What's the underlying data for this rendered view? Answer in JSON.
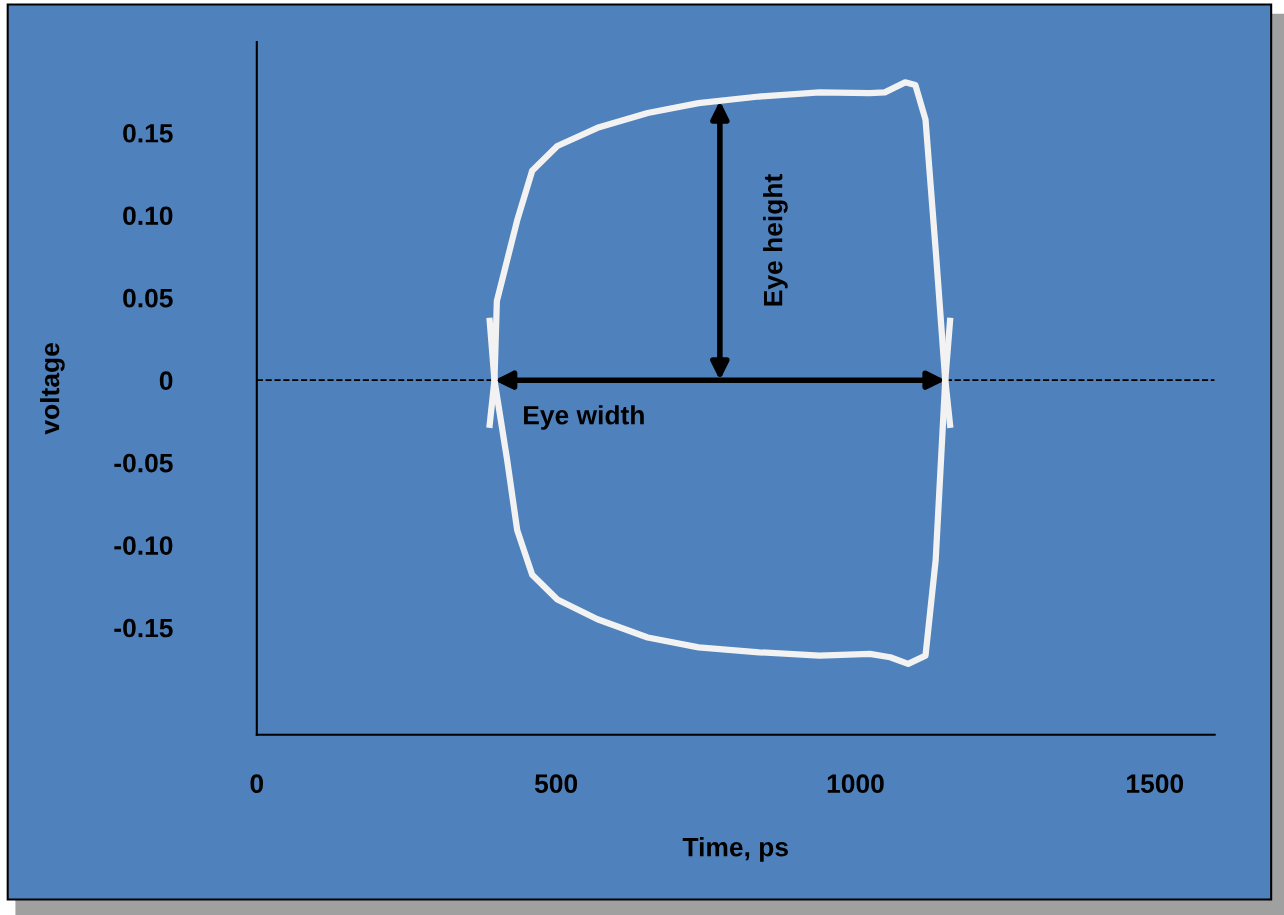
{
  "chart_data": {
    "type": "line",
    "xlabel": "Time, ps",
    "ylabel": "voltage",
    "xlim": [
      0,
      1600
    ],
    "ylim": [
      -0.215,
      0.205
    ],
    "xticks": [
      0,
      500,
      1000,
      1500
    ],
    "yticks": [
      {
        "value": 0.15,
        "label": "0.15"
      },
      {
        "value": 0.1,
        "label": "0.10"
      },
      {
        "value": 0.05,
        "label": "0.05"
      },
      {
        "value": 0,
        "label": "0"
      },
      {
        "value": -0.05,
        "label": "-0.05"
      },
      {
        "value": -0.1,
        "label": "-0.10"
      },
      {
        "value": -0.15,
        "label": "-0.15"
      }
    ],
    "grid": false,
    "marker": "none",
    "line_style": "solid",
    "series": [
      {
        "color": "#f2f2f2",
        "x": [
          389,
          397,
          401,
          435,
          460,
          502,
          569,
          653,
          738,
          839,
          940,
          1024,
          1049,
          1083,
          1100,
          1117,
          1134,
          1150,
          1158
        ],
        "values": [
          -0.027,
          0,
          0.048,
          0.097,
          0.127,
          0.142,
          0.153,
          0.162,
          0.168,
          0.172,
          0.1745,
          0.174,
          0.1745,
          0.1806,
          0.179,
          0.158,
          0.079,
          0,
          -0.027
        ]
      },
      {
        "color": "#f2f2f2",
        "x": [
          389,
          397,
          418,
          435,
          460,
          502,
          569,
          653,
          738,
          839,
          940,
          1024,
          1058,
          1088,
          1117,
          1134,
          1150,
          1158
        ],
        "values": [
          0.036,
          0,
          -0.048,
          -0.091,
          -0.118,
          -0.133,
          -0.145,
          -0.156,
          -0.162,
          -0.165,
          -0.167,
          -0.166,
          -0.168,
          -0.172,
          -0.167,
          -0.109,
          0,
          0.036
        ]
      }
    ],
    "ref_lines": [
      {
        "axis": "y",
        "value": 0,
        "color": "#000000",
        "line_style": "dashed"
      }
    ],
    "annotations": [
      "Eye width",
      "Eye height"
    ]
  }
}
